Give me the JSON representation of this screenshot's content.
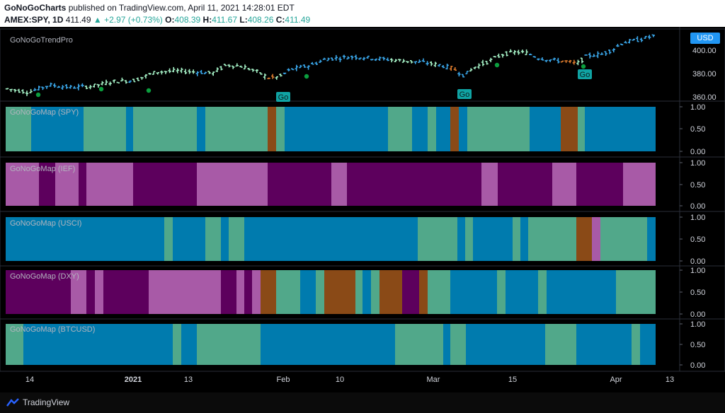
{
  "header": {
    "line1_author": "GoNoGoCharts",
    "line1_text": "published on TradingView.com, April 11, 2021 14:28:01 EDT",
    "symbol": "AMEX:SPY, 1D",
    "last": "411.49",
    "change": "▲ +2.97 (+0.73%)",
    "o_label": "O:",
    "o": "408.39",
    "h_label": "H:",
    "h": "411.67",
    "l_label": "L:",
    "l": "408.26",
    "c_label": "C:",
    "c": "411.49"
  },
  "main_panel": {
    "title": "GoNoGoTrendPro",
    "currency": "USD",
    "price_ticks": [
      "400.00",
      "380.00",
      "360.00"
    ],
    "price_current": "411.49",
    "go_labels": [
      "Go",
      "Go",
      "Go"
    ]
  },
  "panels": [
    {
      "title": "GoNoGoMap (SPY)",
      "ticks": [
        "1.00",
        "0.50",
        "0.00"
      ]
    },
    {
      "title": "GoNoGoMap (IEF)",
      "ticks": [
        "1.00",
        "0.50",
        "0.00"
      ]
    },
    {
      "title": "GoNoGoMap (USCI)",
      "ticks": [
        "1.00",
        "0.50",
        "0.00"
      ]
    },
    {
      "title": "GoNoGoMap (DXY)",
      "ticks": [
        "1.00",
        "0.50",
        "0.00"
      ]
    },
    {
      "title": "GoNoGoMap (BTCUSD)",
      "ticks": [
        "1.00",
        "0.50",
        "0.00"
      ]
    }
  ],
  "x_axis": [
    "14",
    "2021",
    "13",
    "Feb",
    "10",
    "Mar",
    "15",
    "Apr",
    "13"
  ],
  "footer": {
    "brand": "TradingView"
  },
  "colors": {
    "go_strong": "#007bae",
    "go_weak": "#51a88a",
    "nogo_strong": "#5d005d",
    "nogo_weak": "#a85aa7",
    "amber": "#8a4a17",
    "bar_blue": "#3aa7ea",
    "bar_green": "#a4f0c5",
    "bar_orange": "#d9792c",
    "dot_green": "#0b9e3e"
  }
}
